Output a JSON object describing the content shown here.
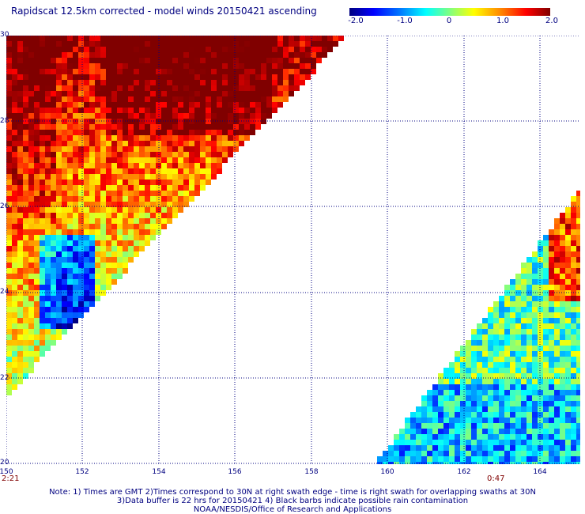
{
  "title": "Rapidscat 12.5km corrected - model winds 20150421 ascending",
  "colorbar": {
    "labels": [
      "-2.0",
      "-1.0",
      "0",
      "1.0",
      "2.0"
    ],
    "min": -2.0,
    "max": 2.0
  },
  "map": {
    "lon_range": [
      150,
      165
    ],
    "lat_range": [
      20,
      30
    ],
    "lon_ticks": [
      "150",
      "152",
      "154",
      "156",
      "158",
      "160",
      "162",
      "164"
    ],
    "lat_ticks": [
      "30",
      "28",
      "26",
      "24",
      "22",
      "20"
    ]
  },
  "swath_times": {
    "left": "2:21",
    "right": "0:47"
  },
  "notes": {
    "line1": "Note: 1) Times are GMT 2)Times correspond to 30N at right swath edge - time is right swath for overlapping swaths at 30N",
    "line2": "3)Data buffer is 22 hrs for 20150421 4) Black barbs indicate possible rain contamination",
    "line3": "NOAA/NESDIS/Office of Research and Applications"
  }
}
